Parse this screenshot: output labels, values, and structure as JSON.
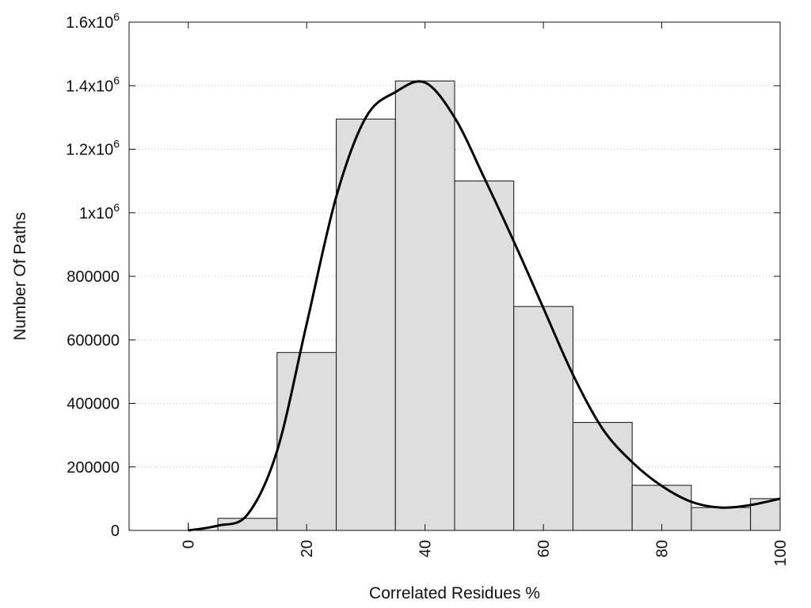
{
  "chart_data": {
    "type": "bar",
    "xlabel": "Correlated Residues %",
    "ylabel": "Number Of Paths",
    "xlim": [
      -10,
      100
    ],
    "ylim": [
      0,
      1600000
    ],
    "grid": "horizontal dotted",
    "x_ticks": [
      {
        "value": 0,
        "label": "0"
      },
      {
        "value": 20,
        "label": "20"
      },
      {
        "value": 40,
        "label": "40"
      },
      {
        "value": 60,
        "label": "60"
      },
      {
        "value": 80,
        "label": "80"
      },
      {
        "value": 100,
        "label": "100"
      }
    ],
    "y_ticks": [
      {
        "value": 0,
        "label": "0"
      },
      {
        "value": 200000,
        "label": "200000"
      },
      {
        "value": 400000,
        "label": "400000"
      },
      {
        "value": 600000,
        "label": "600000"
      },
      {
        "value": 800000,
        "label": "800000"
      },
      {
        "value": 1000000,
        "label": "1x10",
        "exp": "6"
      },
      {
        "value": 1200000,
        "label": "1.2x10",
        "exp": "6"
      },
      {
        "value": 1400000,
        "label": "1.4x10",
        "exp": "6"
      },
      {
        "value": 1600000,
        "label": "1.6x10",
        "exp": "6"
      }
    ],
    "bars": [
      {
        "x0": 0,
        "x1": 5,
        "value": 0
      },
      {
        "x0": 5,
        "x1": 15,
        "value": 38000
      },
      {
        "x0": 15,
        "x1": 25,
        "value": 560000
      },
      {
        "x0": 25,
        "x1": 35,
        "value": 1295000
      },
      {
        "x0": 35,
        "x1": 45,
        "value": 1415000
      },
      {
        "x0": 45,
        "x1": 55,
        "value": 1100000
      },
      {
        "x0": 55,
        "x1": 65,
        "value": 705000
      },
      {
        "x0": 65,
        "x1": 75,
        "value": 340000
      },
      {
        "x0": 75,
        "x1": 85,
        "value": 142000
      },
      {
        "x0": 85,
        "x1": 95,
        "value": 72000
      },
      {
        "x0": 95,
        "x1": 100,
        "value": 100000
      }
    ],
    "curve": {
      "x": [
        0,
        5,
        10,
        15,
        20,
        25,
        30,
        35,
        40,
        45,
        50,
        55,
        60,
        65,
        70,
        75,
        80,
        85,
        90,
        95,
        100
      ],
      "y": [
        0,
        15000,
        50000,
        250000,
        650000,
        1050000,
        1300000,
        1380000,
        1410000,
        1300000,
        1110000,
        910000,
        700000,
        490000,
        320000,
        215000,
        140000,
        90000,
        72000,
        80000,
        100000
      ]
    },
    "colors": {
      "bar_fill": "#dedede",
      "bar_stroke": "#111111",
      "curve": "#000000",
      "grid": "#c8c8c8"
    }
  }
}
